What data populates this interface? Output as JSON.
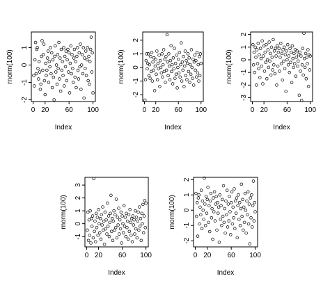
{
  "chart_data": [
    {
      "type": "scatter",
      "xlabel": "Index",
      "ylabel": "rnorm(100)",
      "xlim": [
        -3,
        104
      ],
      "ylim": [
        -2.1,
        1.9
      ],
      "xticks": [
        0,
        20,
        60,
        100
      ],
      "yticks": [
        -2,
        -1,
        0,
        1
      ],
      "values": [
        -0.6,
        -1.2,
        0.3,
        1.3,
        -0.5,
        0.9,
        1.0,
        -0.2,
        -0.8,
        0.2,
        -0.4,
        -1.4,
        -1.1,
        0.5,
        1.4,
        -0.3,
        0.6,
        1.2,
        -0.9,
        -1.7,
        0.1,
        -0.6,
        -0.3,
        0.4,
        0.8,
        -1.0,
        0.2,
        -0.1,
        1.0,
        -0.5,
        0.7,
        -1.3,
        0.3,
        -0.7,
        -2.0,
        0.5,
        1.1,
        -0.4,
        0.0,
        -1.1,
        0.6,
        -0.2,
        1.3,
        -0.8,
        0.4,
        -1.5,
        0.9,
        -0.3,
        0.2,
        -0.6,
        1.0,
        -1.2,
        0.5,
        -0.1,
        0.8,
        -0.9,
        0.3,
        0.9,
        -0.4,
        0.7,
        -1.6,
        0.1,
        1.1,
        -0.5,
        0.6,
        -0.2,
        -1.0,
        0.4,
        0.9,
        -0.7,
        0.2,
        -1.3,
        0.5,
        1.0,
        -0.3,
        -0.8,
        0.7,
        -0.1,
        1.2,
        -1.4,
        0.0,
        0.6,
        -0.5,
        1.0,
        -1.9,
        0.4,
        -0.2,
        0.8,
        -0.6,
        0.3,
        1.0,
        -0.9,
        0.5,
        -1.1,
        0.2,
        0.9,
        1.6,
        -0.4,
        0.7,
        -1.6
      ]
    },
    {
      "type": "scatter",
      "xlabel": "Index",
      "ylabel": "rnorm(100)",
      "xlim": [
        -3,
        104
      ],
      "ylim": [
        -2.5,
        2.6
      ],
      "xticks": [
        0,
        20,
        60,
        100
      ],
      "yticks": [
        -2,
        -1,
        0,
        1,
        2
      ],
      "values": [
        -2.4,
        -0.9,
        0.5,
        1.0,
        -0.1,
        0.3,
        1.0,
        -0.6,
        0.2,
        -0.8,
        0.8,
        -0.3,
        1.1,
        -1.0,
        0.4,
        -0.2,
        0.7,
        -1.7,
        0.1,
        0.6,
        -0.5,
        1.2,
        -0.9,
        0.3,
        -0.1,
        0.9,
        -1.4,
        0.5,
        0.0,
        -0.4,
        1.0,
        -0.7,
        0.2,
        1.3,
        -0.3,
        0.6,
        -1.1,
        0.8,
        -0.2,
        2.4,
        0.4,
        -0.6,
        1.0,
        0.1,
        -0.9,
        0.5,
        1.6,
        -0.3,
        0.2,
        -1.2,
        0.7,
        -0.1,
        1.4,
        -0.8,
        0.3,
        -0.5,
        0.9,
        -1.5,
        0.0,
        0.6,
        -0.4,
        1.1,
        -0.7,
        0.2,
        1.8,
        -1.0,
        0.4,
        -0.2,
        0.8,
        -1.4,
        0.1,
        1.2,
        -0.6,
        0.5,
        -0.9,
        0.3,
        1.0,
        -0.3,
        0.7,
        -1.1,
        0.2,
        -0.5,
        1.3,
        0.0,
        -0.8,
        0.6,
        -1.3,
        0.4,
        0.9,
        -0.2,
        0.5,
        -0.7,
        1.1,
        -0.4,
        0.2,
        -1.0,
        0.8,
        -0.6,
        1.0,
        0.3
      ]
    },
    {
      "type": "scatter",
      "xlabel": "Index",
      "ylabel": "rnorm(100)",
      "xlim": [
        -3,
        104
      ],
      "ylim": [
        -3.3,
        2.2
      ],
      "xticks": [
        0,
        20,
        60,
        100
      ],
      "yticks": [
        -3,
        -2,
        -1,
        0,
        1,
        2
      ],
      "values": [
        1.2,
        -0.4,
        0.6,
        -1.0,
        1.0,
        0.2,
        -2.0,
        0.8,
        -0.3,
        1.3,
        -0.7,
        0.4,
        -1.4,
        0.9,
        0.1,
        -0.5,
        1.5,
        -1.9,
        0.3,
        1.1,
        -0.9,
        0.6,
        -0.2,
        1.2,
        -1.5,
        0.0,
        0.8,
        -0.6,
        1.4,
        -0.1,
        0.5,
        -1.2,
        1.0,
        0.2,
        -0.8,
        1.6,
        -0.4,
        0.7,
        -1.1,
        0.9,
        0.3,
        -2.0,
        1.1,
        -0.5,
        0.6,
        0.9,
        -0.9,
        0.2,
        1.3,
        -0.3,
        0.5,
        -1.6,
        0.8,
        -0.1,
        1.0,
        -0.7,
        0.4,
        -2.5,
        0.7,
        0.0,
        1.2,
        -0.4,
        0.3,
        -1.0,
        0.9,
        -0.2,
        0.6,
        -1.8,
        1.1,
        0.1,
        -0.6,
        0.5,
        -0.3,
        0.8,
        -1.3,
        0.2,
        0.7,
        -0.5,
        -0.1,
        0.4,
        -2.8,
        0.6,
        -0.9,
        0.3,
        -3.2,
        -0.4,
        0.9,
        -1.2,
        2.1,
        0.1,
        -0.6,
        0.5,
        -1.5,
        0.2,
        -0.3,
        0.8,
        -2.1,
        0.4,
        -0.8,
        0.3
      ]
    },
    {
      "type": "scatter",
      "xlabel": "Index",
      "ylabel": "rnorm(100)",
      "xlim": [
        -3,
        104
      ],
      "ylim": [
        -1.8,
        3.6
      ],
      "xticks": [
        0,
        20,
        60,
        100
      ],
      "yticks": [
        -1,
        0,
        1,
        2,
        3
      ],
      "values": [
        -0.5,
        0.9,
        -1.3,
        0.3,
        -0.9,
        1.0,
        -1.5,
        0.4,
        -0.2,
        0.6,
        -1.1,
        3.5,
        -0.6,
        0.2,
        -1.4,
        0.8,
        -0.3,
        0.5,
        -0.9,
        1.1,
        0.0,
        -0.7,
        0.4,
        -1.2,
        0.7,
        -0.1,
        1.3,
        -0.5,
        0.2,
        -1.6,
        0.9,
        -0.4,
        0.3,
        -0.8,
        1.6,
        -0.2,
        0.6,
        -1.0,
        0.1,
        0.8,
        2.2,
        -0.6,
        0.4,
        -1.3,
        0.2,
        1.0,
        -0.5,
        0.7,
        -0.3,
        1.9,
        -1.1,
        0.5,
        -0.1,
        1.2,
        -0.8,
        0.3,
        -0.4,
        0.9,
        -1.5,
        0.6,
        0.0,
        -0.7,
        1.4,
        -0.2,
        0.5,
        -1.0,
        0.8,
        -0.3,
        0.2,
        -1.2,
        0.7,
        -0.6,
        1.1,
        0.1,
        -0.9,
        0.4,
        -1.4,
        0.6,
        -0.1,
        0.3,
        -0.8,
        1.0,
        -0.4,
        0.5,
        -1.1,
        0.2,
        0.9,
        -0.5,
        1.3,
        -0.2,
        0.4,
        -1.3,
        0.8,
        0.0,
        1.5,
        -0.7,
        0.6,
        1.8,
        -0.3,
        1.6
      ]
    },
    {
      "type": "scatter",
      "xlabel": "Index",
      "ylabel": "rnorm(100)",
      "xlim": [
        -3,
        104
      ],
      "ylim": [
        -2.4,
        2.15
      ],
      "xticks": [
        0,
        20,
        60,
        100
      ],
      "yticks": [
        -2,
        -1,
        0,
        1,
        2
      ],
      "values": [
        1.1,
        -0.4,
        0.5,
        -1.7,
        0.8,
        1.0,
        -0.9,
        0.2,
        -0.3,
        1.3,
        -1.2,
        0.6,
        0.0,
        -0.6,
        2.1,
        0.4,
        -1.0,
        0.9,
        -0.2,
        0.7,
        1.5,
        -0.8,
        0.3,
        -1.4,
        0.6,
        1.1,
        -0.5,
        0.1,
        -1.9,
        0.8,
        -0.1,
        1.2,
        -0.7,
        0.4,
        0.9,
        -1.3,
        0.5,
        -0.2,
        0.2,
        -2.1,
        1.0,
        -0.6,
        0.3,
        -1.0,
        0.7,
        -0.4,
        1.6,
        -0.8,
        0.1,
        -1.5,
        0.6,
        -0.3,
        1.3,
        -1.1,
        0.4,
        -0.7,
        0.9,
        -0.1,
        -1.6,
        0.5,
        1.2,
        -0.9,
        0.2,
        -0.5,
        1.4,
        -1.2,
        0.6,
        -0.2,
        0.8,
        -1.8,
        0.3,
        1.0,
        -0.6,
        0.5,
        -1.0,
        0.1,
        1.7,
        -0.4,
        0.7,
        -1.3,
        0.2,
        -0.8,
        1.1,
        0.0,
        -1.5,
        0.6,
        -0.3,
        1.2,
        -0.9,
        0.4,
        -2.2,
        0.8,
        -0.5,
        1.0,
        -1.1,
        0.3,
        1.9,
        -0.7,
        0.5,
        -0.1
      ]
    }
  ]
}
